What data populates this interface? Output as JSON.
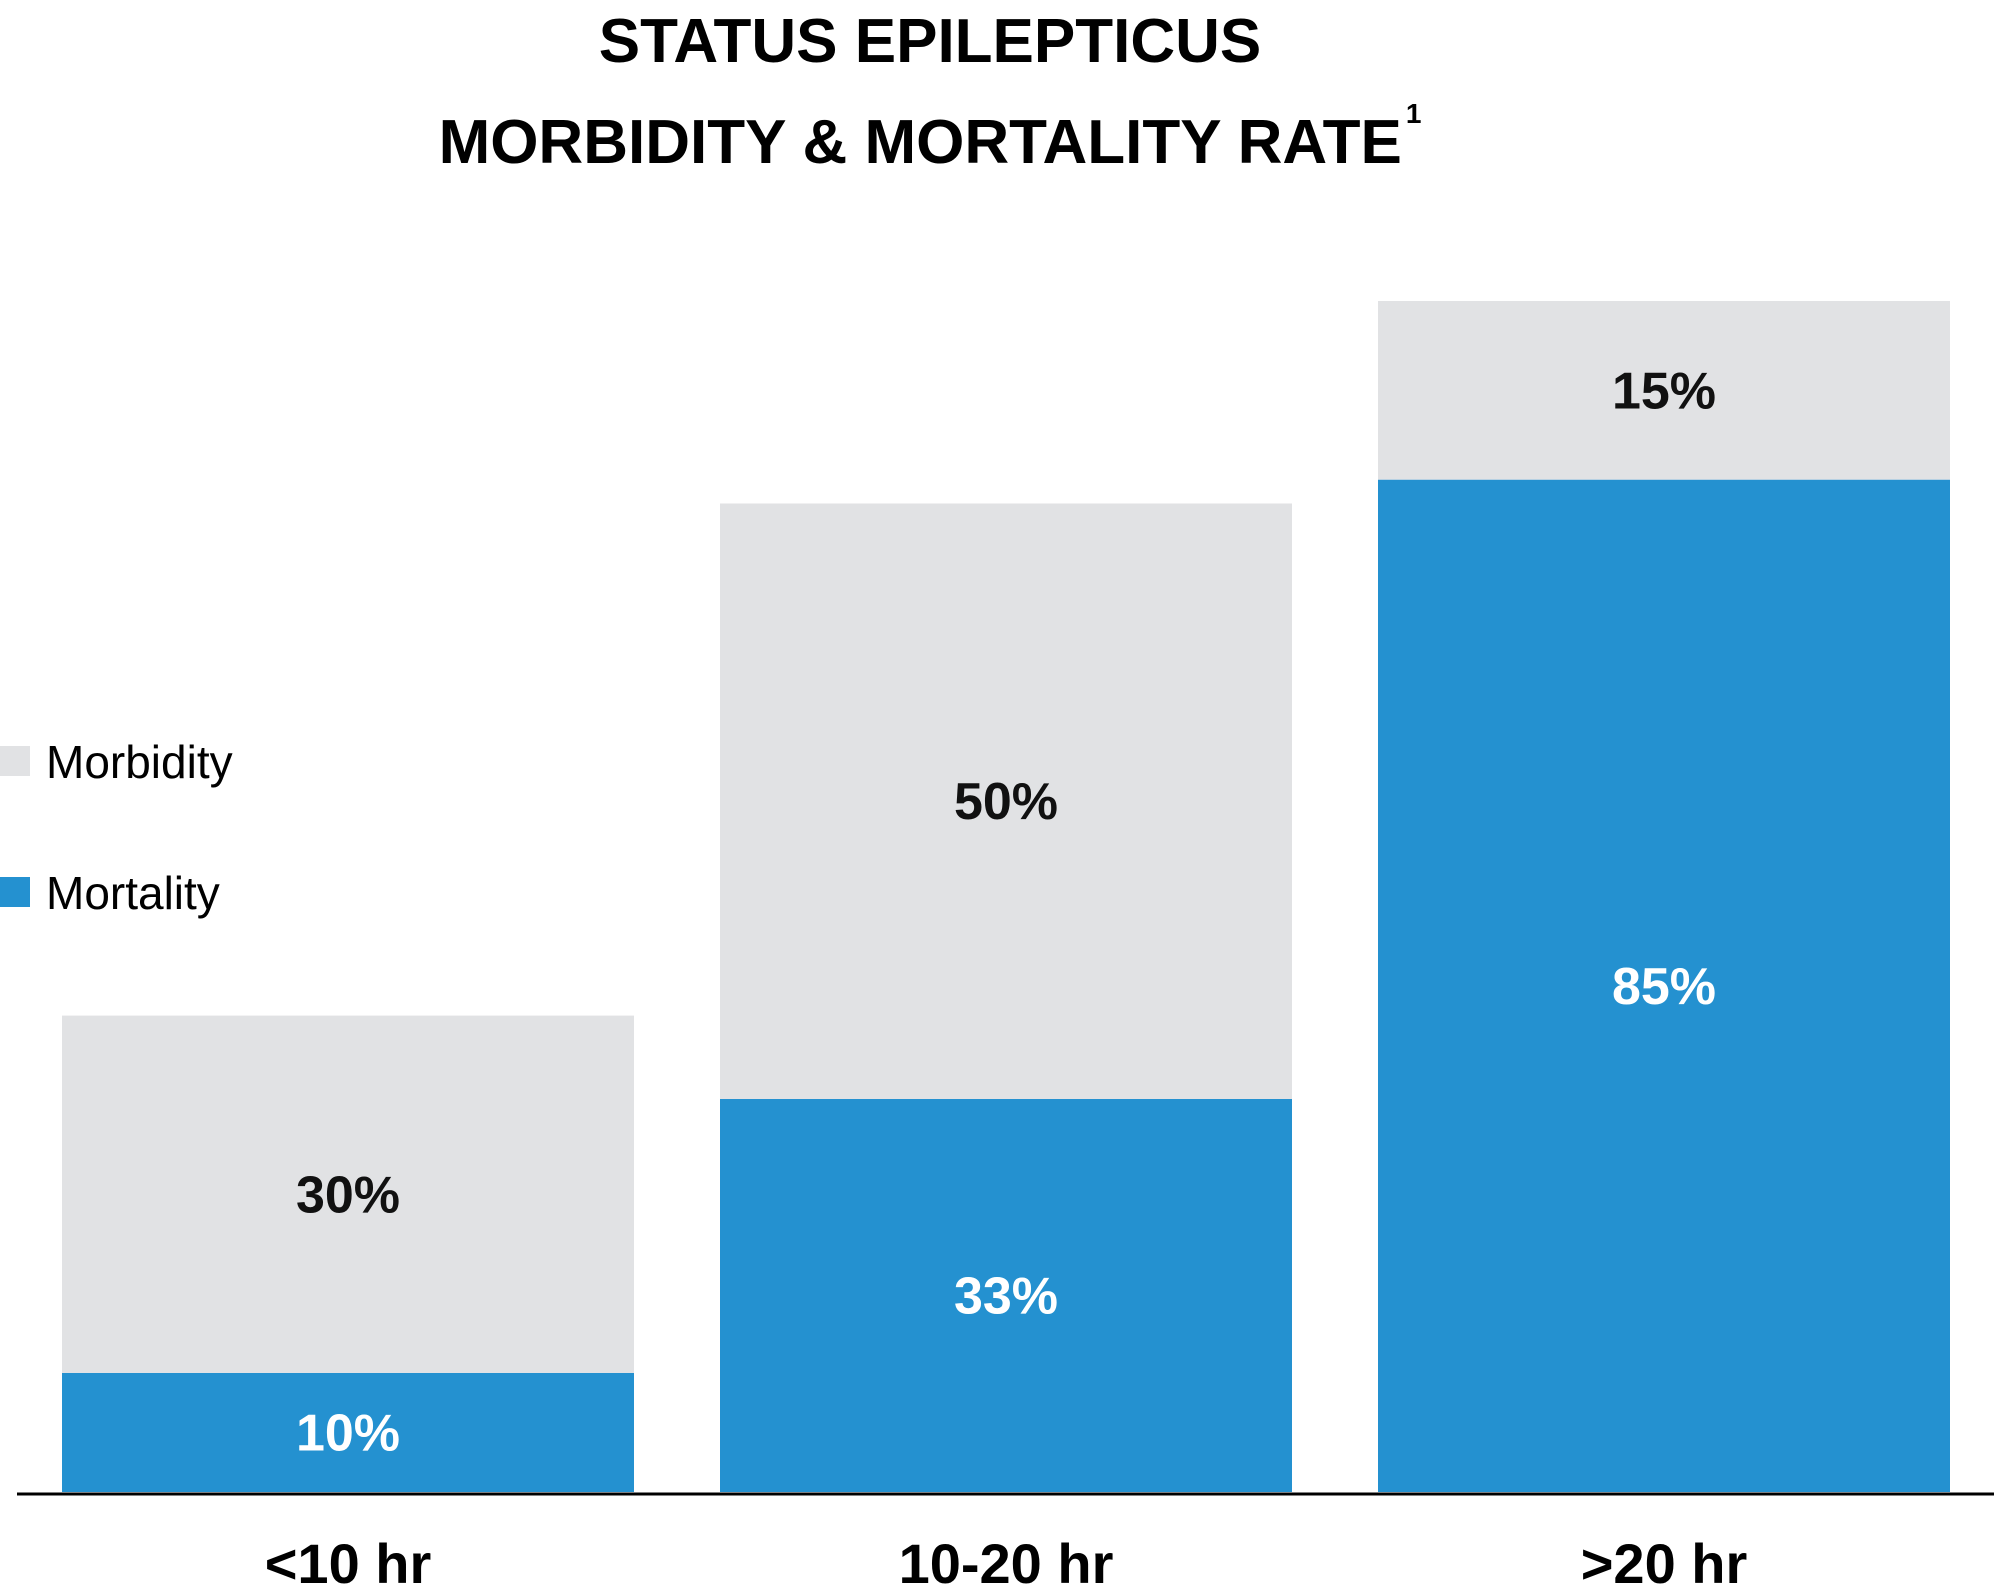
{
  "chart_data": {
    "type": "bar",
    "stacked": true,
    "title_lines": [
      "STATUS EPILEPTICUS",
      "MORBIDITY & MORTALITY RATE"
    ],
    "title_superscript": "1",
    "categories": [
      "<10 hr",
      "10-20 hr",
      ">20 hr"
    ],
    "series": [
      {
        "name": "Mortality",
        "color": "#2491d0",
        "label_color": "#ffffff",
        "values": [
          10,
          33,
          85
        ],
        "labels": [
          "10%",
          "33%",
          "85%"
        ]
      },
      {
        "name": "Morbidity",
        "color": "#e1e2e4",
        "label_color": "#111111",
        "values": [
          30,
          50,
          15
        ],
        "labels": [
          "30%",
          "50%",
          "15%"
        ]
      }
    ],
    "legend": {
      "position": "left-middle",
      "order": [
        "Morbidity",
        "Mortality"
      ]
    },
    "ylim": [
      0,
      100
    ],
    "grid": false
  }
}
